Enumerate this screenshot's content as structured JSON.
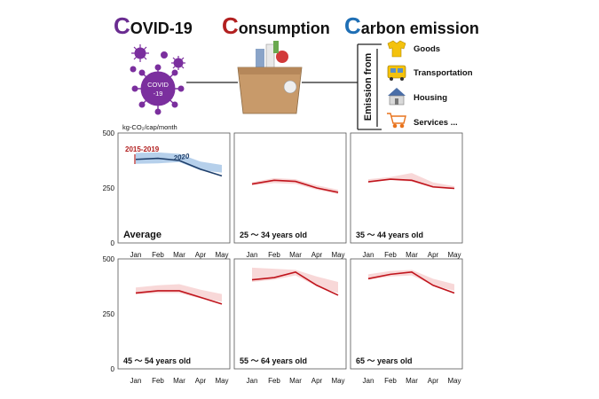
{
  "header": {
    "covid": {
      "initial": "C",
      "rest": "OVID-19",
      "color": "#6a2c91"
    },
    "consumption": {
      "initial": "C",
      "rest": "onsumption",
      "color": "#b22020"
    },
    "carbon": {
      "initial": "C",
      "rest": "arbon emission",
      "color": "#1f6fb5"
    },
    "virus_label": "COVID\n-19",
    "emission_from": "Emission from",
    "categories": [
      {
        "label": "Goods",
        "icon": "shirt-icon"
      },
      {
        "label": "Transportation",
        "icon": "bus-icon"
      },
      {
        "label": "Housing",
        "icon": "house-icon"
      },
      {
        "label": "Services ...",
        "icon": "shopping-cart-icon"
      }
    ]
  },
  "chart_data": {
    "type": "line",
    "unit_label": "kg-CO₂/cap/month",
    "categories": [
      "Jan",
      "Feb",
      "Mar",
      "Apr",
      "May"
    ],
    "ylim": [
      0,
      500
    ],
    "yticks": [
      0,
      250,
      500
    ],
    "colors": {
      "baseline_band_blue": "#a9c8e8",
      "line_2020_blue": "#1f3f6b",
      "band_red": "#f7d4d4",
      "line_red": "#c0141c",
      "baseline_label": "#b22020",
      "year_label": "#1f3f6b"
    },
    "panels": [
      {
        "title": "Average",
        "baseline_label": "2015-2019",
        "year_label": "2020",
        "series_2020": [
          380,
          385,
          375,
          335,
          305
        ],
        "band_low": [
          360,
          362,
          368,
          330,
          320
        ],
        "band_high": [
          410,
          412,
          405,
          370,
          355
        ]
      },
      {
        "title": "25 ～ 34 years old",
        "series_2020": [
          268,
          285,
          280,
          250,
          230
        ],
        "band_low": [
          262,
          272,
          268,
          242,
          222
        ],
        "band_high": [
          276,
          295,
          290,
          262,
          242
        ]
      },
      {
        "title": "35 ～ 44 years old",
        "series_2020": [
          278,
          290,
          285,
          255,
          248
        ],
        "band_low": [
          275,
          286,
          278,
          250,
          245
        ],
        "band_high": [
          290,
          300,
          318,
          275,
          258
        ]
      },
      {
        "title": "45 ～ 54 years old",
        "series_2020": [
          345,
          355,
          355,
          325,
          295
        ],
        "band_low": [
          338,
          345,
          345,
          320,
          305
        ],
        "band_high": [
          370,
          380,
          385,
          360,
          340
        ]
      },
      {
        "title": "55 ～ 64 years old",
        "series_2020": [
          405,
          415,
          440,
          380,
          335
        ],
        "band_low": [
          395,
          405,
          425,
          375,
          345
        ],
        "band_high": [
          460,
          455,
          450,
          420,
          395
        ]
      },
      {
        "title": "65 ～ years old",
        "series_2020": [
          410,
          430,
          440,
          380,
          345
        ],
        "band_low": [
          405,
          420,
          425,
          380,
          355
        ],
        "band_high": [
          430,
          445,
          450,
          410,
          385
        ]
      }
    ]
  }
}
